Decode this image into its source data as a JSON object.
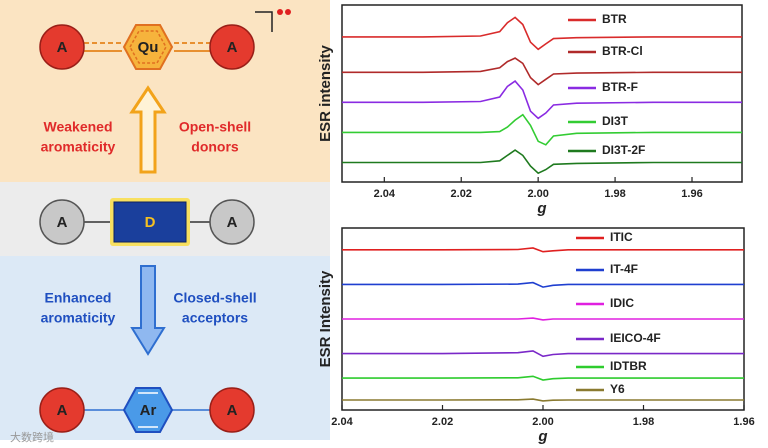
{
  "diagram": {
    "top": {
      "nodes": [
        "A",
        "Qu",
        "A"
      ],
      "left_label": [
        "Weakened",
        "aromaticity"
      ],
      "right_label": [
        "Open-shell",
        "donors"
      ]
    },
    "middle": {
      "nodes": [
        "A",
        "D",
        "A"
      ]
    },
    "bottom": {
      "nodes": [
        "A",
        "Ar",
        "A"
      ],
      "left_label": [
        "Enhanced",
        "aromaticity"
      ],
      "right_label": [
        "Closed-shell",
        "acceptors"
      ]
    }
  },
  "watermark": "大数跨境",
  "chart_data": [
    {
      "type": "line",
      "xlabel": "g",
      "ylabel": "ESR intensity",
      "x": [
        2.051,
        2.03,
        2.015,
        2.01,
        2.008,
        2.006,
        2.004,
        2.002,
        2.0,
        1.998,
        1.996,
        1.99,
        1.97,
        1.947
      ],
      "xlim": [
        2.051,
        1.947
      ],
      "xticks": [
        {
          "value": 2.04,
          "label": "2.04"
        },
        {
          "value": 2.02,
          "label": "2.02"
        },
        {
          "value": 2.0,
          "label": "2.00"
        },
        {
          "value": 1.98,
          "label": "1.98"
        },
        {
          "value": 1.96,
          "label": "1.96"
        }
      ],
      "ylim": [
        0,
        10
      ],
      "series": [
        {
          "name": "BTR",
          "color": "#d92b2b",
          "values": [
            8.2,
            8.2,
            8.25,
            8.5,
            9.0,
            9.3,
            8.9,
            7.9,
            7.5,
            7.8,
            8.1,
            8.15,
            8.2,
            8.2
          ]
        },
        {
          "name": "BTR-Cl",
          "color": "#b02a2a",
          "values": [
            6.2,
            6.2,
            6.25,
            6.45,
            6.8,
            7.0,
            6.7,
            5.9,
            5.5,
            5.8,
            6.1,
            6.15,
            6.2,
            6.2
          ]
        },
        {
          "name": "BTR-F",
          "color": "#8a2be2",
          "values": [
            4.5,
            4.5,
            4.55,
            4.8,
            5.4,
            5.7,
            5.2,
            4.0,
            3.6,
            3.9,
            4.35,
            4.45,
            4.5,
            4.5
          ]
        },
        {
          "name": "DI3T",
          "color": "#33cc33",
          "values": [
            2.8,
            2.8,
            2.8,
            2.85,
            3.1,
            3.5,
            3.8,
            3.2,
            2.3,
            2.1,
            2.6,
            2.75,
            2.8,
            2.8
          ]
        },
        {
          "name": "DI3T-2F",
          "color": "#1f7a1f",
          "values": [
            1.1,
            1.1,
            1.1,
            1.2,
            1.5,
            1.8,
            1.5,
            0.9,
            0.5,
            0.7,
            1.0,
            1.05,
            1.1,
            1.1
          ]
        }
      ]
    },
    {
      "type": "line",
      "xlabel": "g",
      "ylabel": "ESR Intensity",
      "x": [
        2.04,
        2.02,
        2.005,
        2.002,
        2.0,
        1.998,
        1.995,
        1.98,
        1.96
      ],
      "xlim": [
        2.04,
        1.96
      ],
      "xticks": [
        {
          "value": 2.04,
          "label": "2.04"
        },
        {
          "value": 2.02,
          "label": "2.02"
        },
        {
          "value": 2.0,
          "label": "2.00"
        },
        {
          "value": 1.98,
          "label": "1.98"
        },
        {
          "value": 1.96,
          "label": "1.96"
        }
      ],
      "ylim": [
        0,
        10
      ],
      "series": [
        {
          "name": "ITIC",
          "color": "#e02020",
          "values": [
            8.8,
            8.8,
            8.82,
            8.9,
            8.7,
            8.75,
            8.8,
            8.8,
            8.8
          ]
        },
        {
          "name": "IT-4F",
          "color": "#1f3fd0",
          "values": [
            6.9,
            6.9,
            6.92,
            7.0,
            6.75,
            6.85,
            6.9,
            6.9,
            6.9
          ]
        },
        {
          "name": "IDIC",
          "color": "#e020e0",
          "values": [
            5.0,
            5.0,
            5.0,
            5.05,
            4.95,
            5.0,
            5.0,
            5.0,
            5.0
          ]
        },
        {
          "name": "IEICO-4F",
          "color": "#7a28c8",
          "values": [
            3.1,
            3.1,
            3.15,
            3.25,
            2.95,
            3.05,
            3.1,
            3.1,
            3.1
          ]
        },
        {
          "name": "IDTBR",
          "color": "#2ecc2e",
          "values": [
            1.75,
            1.75,
            1.77,
            1.85,
            1.65,
            1.72,
            1.75,
            1.75,
            1.75
          ]
        },
        {
          "name": "Y6",
          "color": "#8a7a30",
          "values": [
            0.55,
            0.55,
            0.56,
            0.6,
            0.5,
            0.54,
            0.55,
            0.55,
            0.55
          ]
        }
      ]
    }
  ]
}
